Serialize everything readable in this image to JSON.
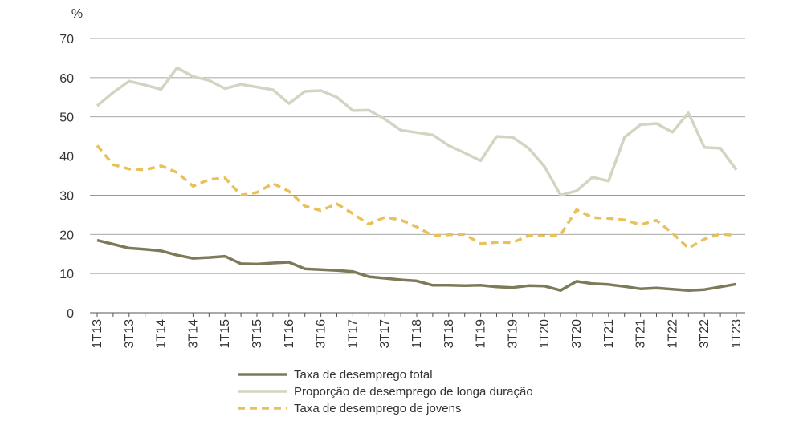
{
  "chart_data": {
    "type": "line",
    "unit": "%",
    "ylim": [
      0,
      70
    ],
    "yticks": [
      0,
      10,
      20,
      30,
      40,
      50,
      60,
      70
    ],
    "grid": true,
    "legend_position": "bottom",
    "categories": [
      "1T13",
      "2T13",
      "3T13",
      "4T13",
      "1T14",
      "2T14",
      "3T14",
      "4T14",
      "1T15",
      "2T15",
      "3T15",
      "4T15",
      "1T16",
      "2T16",
      "3T16",
      "4T16",
      "1T17",
      "2T17",
      "3T17",
      "4T17",
      "1T18",
      "2T18",
      "3T18",
      "4T18",
      "1T19",
      "2T19",
      "3T19",
      "4T19",
      "1T20",
      "2T20",
      "3T20",
      "4T20",
      "1T21",
      "2T21",
      "3T21",
      "4T21",
      "1T22",
      "2T22",
      "3T22",
      "4T22",
      "1T23"
    ],
    "tick_labels": [
      "1T13",
      "3T13",
      "1T14",
      "3T14",
      "1T15",
      "3T15",
      "1T16",
      "3T16",
      "1T17",
      "3T17",
      "1T18",
      "3T18",
      "1T19",
      "3T19",
      "1T20",
      "3T20",
      "1T21",
      "3T21",
      "1T22",
      "3T22",
      "1T23"
    ],
    "series": [
      {
        "name": "Taxa de desemprego total",
        "color": "#7d7a5a",
        "style": "solid",
        "values": [
          18.5,
          17.5,
          16.5,
          16.2,
          15.8,
          14.7,
          13.9,
          14.1,
          14.4,
          12.5,
          12.4,
          12.7,
          12.9,
          11.2,
          11.0,
          10.8,
          10.5,
          9.2,
          8.8,
          8.4,
          8.1,
          7.0,
          7.0,
          6.9,
          7.0,
          6.6,
          6.4,
          6.9,
          6.8,
          5.7,
          8.0,
          7.4,
          7.2,
          6.7,
          6.1,
          6.3,
          6.0,
          5.7,
          5.9,
          6.6,
          7.3
        ]
      },
      {
        "name": "Proporção de desemprego de longa duração",
        "color": "#d3d4c1",
        "style": "solid",
        "values": [
          52.8,
          56.2,
          59.1,
          58.1,
          57.0,
          62.5,
          60.3,
          59.3,
          57.2,
          58.3,
          57.6,
          56.9,
          53.4,
          56.5,
          56.7,
          55.0,
          51.6,
          51.7,
          49.4,
          46.6,
          46.0,
          45.4,
          42.7,
          40.8,
          38.8,
          45.0,
          44.8,
          42.0,
          37.3,
          30.0,
          31.1,
          34.6,
          33.6,
          44.8,
          48.0,
          48.3,
          46.1,
          51.0,
          42.2,
          42.0,
          36.5
        ]
      },
      {
        "name": "Taxa de desemprego de jovens",
        "color": "#e8c15a",
        "style": "dashed",
        "values": [
          42.7,
          37.8,
          36.7,
          36.5,
          37.5,
          35.8,
          32.3,
          34.0,
          34.4,
          30.0,
          30.7,
          33.0,
          31.0,
          27.2,
          26.1,
          27.8,
          25.3,
          22.6,
          24.4,
          23.7,
          21.9,
          19.7,
          19.9,
          20.0,
          17.6,
          18.0,
          17.9,
          19.7,
          19.6,
          19.9,
          26.3,
          24.3,
          24.1,
          23.7,
          22.5,
          23.6,
          20.3,
          16.5,
          18.8,
          20.1,
          19.7
        ]
      }
    ]
  }
}
